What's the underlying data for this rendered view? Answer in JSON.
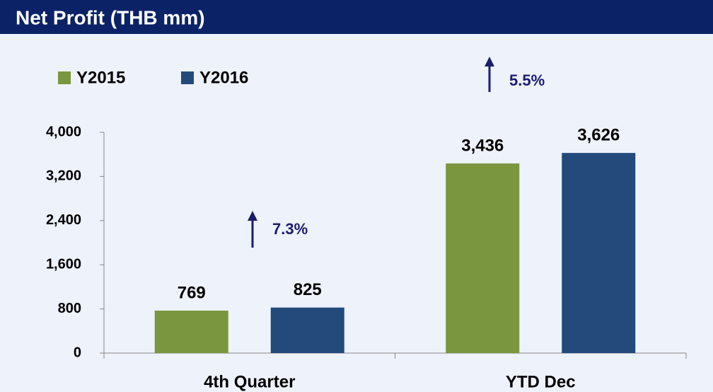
{
  "chart_data": {
    "type": "bar",
    "title": "Net Profit (THB mm)",
    "categories": [
      "4th Quarter",
      "YTD Dec"
    ],
    "series": [
      {
        "name": "Y2015",
        "color": "#7a963e",
        "values": [
          769,
          3436
        ],
        "value_labels": [
          "769",
          "3,436"
        ]
      },
      {
        "name": "Y2016",
        "color": "#234a7b",
        "values": [
          825,
          3626
        ],
        "value_labels": [
          "825",
          "3,626"
        ]
      }
    ],
    "annotations": [
      "7.3%",
      "5.5%"
    ],
    "ylim": [
      0,
      4000
    ],
    "yticks": [
      0,
      800,
      {
        "value": 1600,
        "label": "1,600"
      },
      {
        "value": 2400,
        "label": "2,400"
      },
      {
        "value": 3200,
        "label": "3,200"
      },
      {
        "value": 4000,
        "label": "4,000"
      }
    ],
    "grid": false
  }
}
